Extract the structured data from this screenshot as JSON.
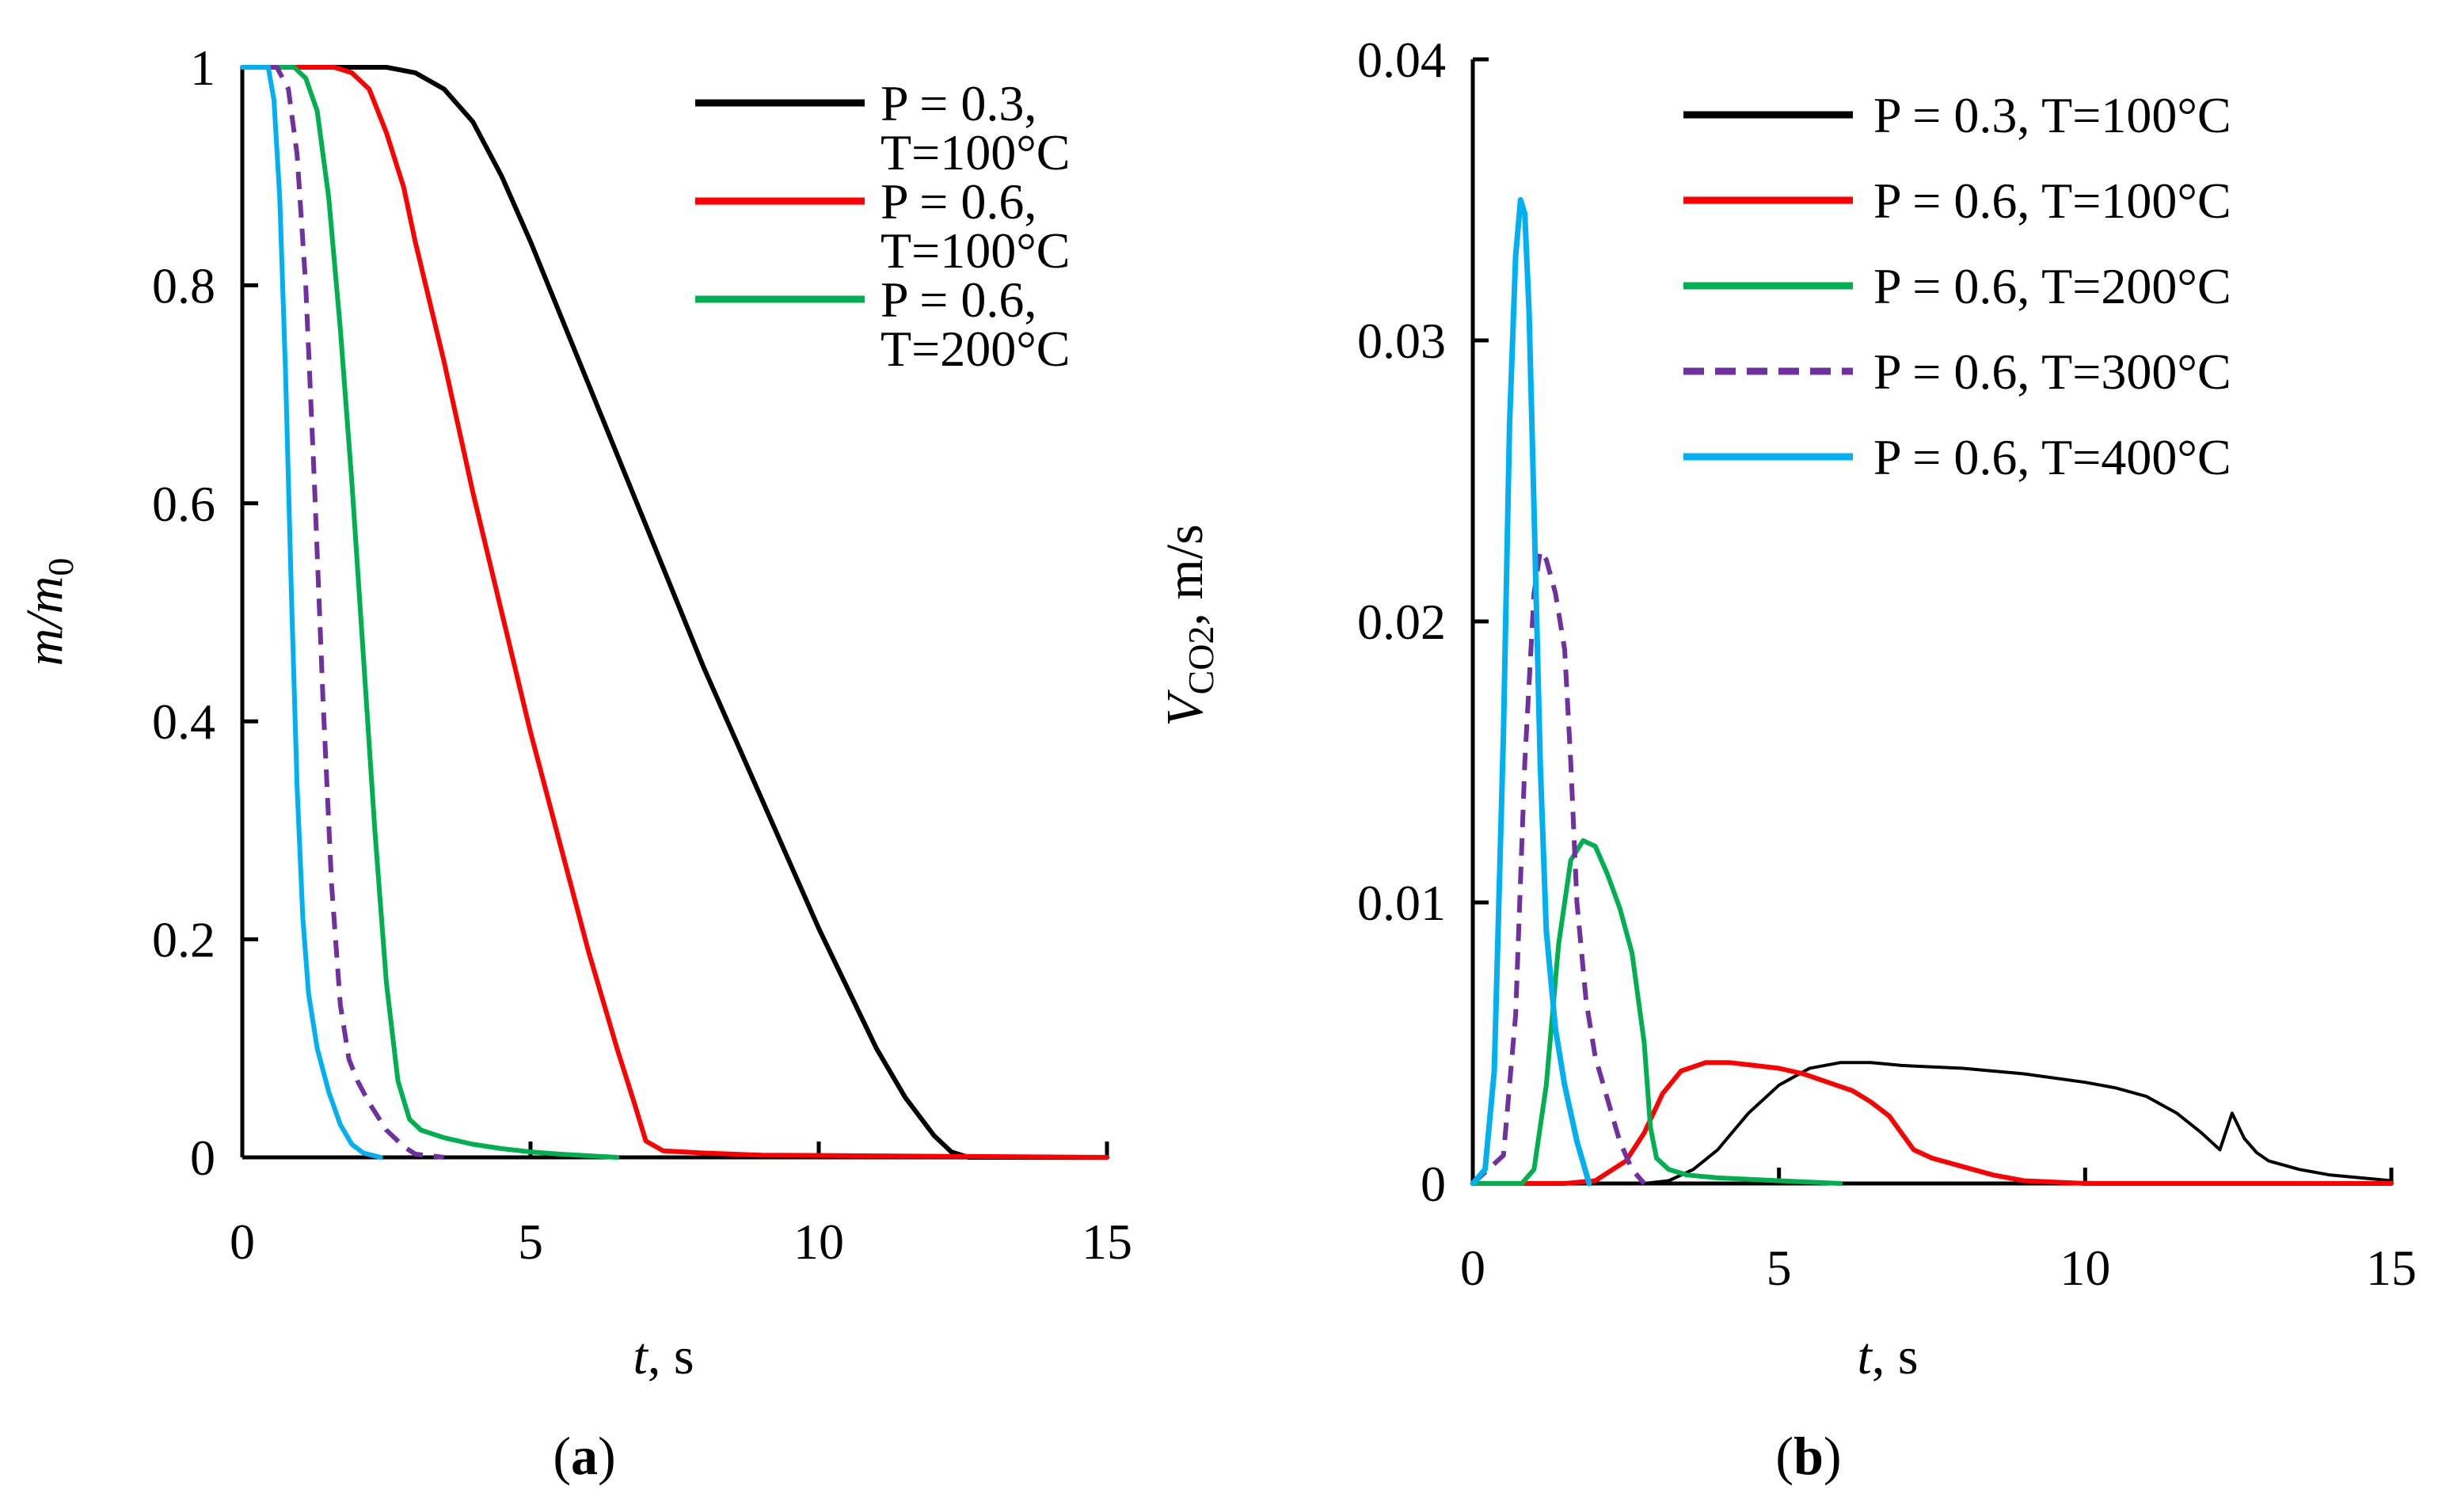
{
  "colors": {
    "black": "#000000",
    "red": "#ff0000",
    "green": "#00b050",
    "purple": "#7030a0",
    "cyan": "#00b0f0"
  },
  "chart_data": [
    {
      "panel_label": "(a)",
      "type": "line",
      "title": "",
      "xlabel_var": "t",
      "xlabel_unit": ", s",
      "ylabel_var": "m/m",
      "ylabel_sub": "0",
      "xlim": [
        0,
        15
      ],
      "ylim": [
        0,
        1
      ],
      "xticks": [
        0,
        5,
        10,
        15
      ],
      "xtick_labels": [
        "0",
        "5",
        "10",
        "15"
      ],
      "yticks": [
        0,
        0.2,
        0.4,
        0.6,
        0.8,
        1
      ],
      "ytick_labels": [
        "0",
        "0.2",
        "0.4",
        "0.6",
        "0.8",
        "1"
      ],
      "grid": false,
      "legend_position": "top-right",
      "series": [
        {
          "name_lines": [
            "P = 0.3,",
            "T=100°C"
          ],
          "color": "#000000",
          "dashed": false,
          "legend": true,
          "width": 6,
          "x": [
            0,
            2.5,
            3.0,
            3.5,
            4.0,
            4.5,
            5.0,
            6.0,
            7.0,
            8.0,
            9.0,
            10.0,
            11.0,
            11.5,
            12.0,
            12.3,
            12.6,
            15
          ],
          "y": [
            1,
            1,
            0.995,
            0.98,
            0.95,
            0.9,
            0.84,
            0.71,
            0.58,
            0.45,
            0.33,
            0.21,
            0.1,
            0.055,
            0.02,
            0.005,
            0,
            0
          ]
        },
        {
          "name_lines": [
            "P = 0.6,",
            "T=100°C"
          ],
          "color": "#ff0000",
          "dashed": false,
          "legend": true,
          "width": 6,
          "x": [
            0,
            1.6,
            1.9,
            2.2,
            2.5,
            2.8,
            3.0,
            3.5,
            4.0,
            4.5,
            5.0,
            5.5,
            6.0,
            6.5,
            6.8,
            7.0,
            7.3,
            8.0,
            9.0,
            15
          ],
          "y": [
            1,
            1,
            0.995,
            0.98,
            0.94,
            0.89,
            0.84,
            0.73,
            0.61,
            0.5,
            0.39,
            0.29,
            0.19,
            0.1,
            0.05,
            0.015,
            0.006,
            0.004,
            0.002,
            0
          ]
        },
        {
          "name_lines": [
            "P = 0.6,",
            "T=200°C"
          ],
          "color": "#00b050",
          "dashed": false,
          "legend": true,
          "width": 6,
          "x": [
            0,
            0.9,
            1.1,
            1.3,
            1.5,
            1.7,
            1.9,
            2.1,
            2.3,
            2.5,
            2.7,
            2.9,
            3.1,
            3.5,
            4.0,
            4.5,
            5.0,
            5.5,
            6.5
          ],
          "y": [
            1,
            1,
            0.99,
            0.96,
            0.88,
            0.76,
            0.62,
            0.46,
            0.3,
            0.16,
            0.07,
            0.035,
            0.025,
            0.018,
            0.012,
            0.008,
            0.005,
            0.003,
            0
          ]
        },
        {
          "name_lines": [
            "P = 0.6, T=300°C"
          ],
          "color": "#7030a0",
          "dashed": true,
          "legend": false,
          "width": 6,
          "x": [
            0,
            0.6,
            0.8,
            0.95,
            1.1,
            1.25,
            1.4,
            1.55,
            1.7,
            1.85,
            2.0,
            2.2,
            2.5,
            2.8,
            3.0,
            3.5
          ],
          "y": [
            1,
            1,
            0.98,
            0.92,
            0.8,
            0.62,
            0.42,
            0.25,
            0.14,
            0.09,
            0.07,
            0.05,
            0.025,
            0.01,
            0.003,
            0
          ]
        },
        {
          "name_lines": [
            "P = 0.6, T=400°C"
          ],
          "color": "#00b0f0",
          "dashed": false,
          "legend": false,
          "width": 6,
          "x": [
            0,
            0.45,
            0.55,
            0.65,
            0.75,
            0.85,
            0.95,
            1.05,
            1.15,
            1.3,
            1.5,
            1.7,
            1.9,
            2.1,
            2.4
          ],
          "y": [
            1,
            1,
            0.97,
            0.88,
            0.72,
            0.52,
            0.34,
            0.22,
            0.15,
            0.1,
            0.06,
            0.03,
            0.012,
            0.004,
            0
          ]
        }
      ]
    },
    {
      "panel_label": "(b)",
      "type": "line",
      "title": "",
      "xlabel_var": "t",
      "xlabel_unit": ", s",
      "ylabel_var": "V",
      "ylabel_sub": "CO2",
      "ylabel_unit": ", m/s",
      "xlim": [
        0,
        15
      ],
      "ylim": [
        0,
        0.04
      ],
      "xticks": [
        0,
        5,
        10,
        15
      ],
      "xtick_labels": [
        "0",
        "5",
        "10",
        "15"
      ],
      "yticks": [
        0,
        0.01,
        0.02,
        0.03,
        0.04
      ],
      "ytick_labels": [
        "0",
        "0.01",
        "0.02",
        "0.03",
        "0.04"
      ],
      "grid": false,
      "legend_position": "top-right",
      "series": [
        {
          "name_lines": [
            "P = 0.3, T=100°C"
          ],
          "color": "#000000",
          "dashed": false,
          "legend": true,
          "width": 4,
          "x": [
            0,
            2.8,
            3.2,
            3.6,
            4.0,
            4.5,
            5.0,
            5.5,
            6.0,
            6.5,
            7.0,
            8.0,
            9.0,
            10.0,
            10.5,
            11.0,
            11.5,
            11.9,
            12.2,
            12.4,
            12.6,
            12.8,
            13.0,
            13.5,
            14.0,
            14.5,
            15.0
          ],
          "y": [
            0,
            0,
            0.0001,
            0.0005,
            0.0012,
            0.0025,
            0.0035,
            0.0041,
            0.0043,
            0.0043,
            0.0042,
            0.0041,
            0.0039,
            0.0036,
            0.0034,
            0.0031,
            0.0025,
            0.0018,
            0.0012,
            0.0025,
            0.0016,
            0.0011,
            0.0008,
            0.0005,
            0.0003,
            0.0002,
            0.0001
          ]
        },
        {
          "name_lines": [
            "P = 0.6, T=100°C"
          ],
          "color": "#ff0000",
          "dashed": false,
          "legend": true,
          "width": 6,
          "x": [
            0,
            1.5,
            2.0,
            2.5,
            2.8,
            3.1,
            3.4,
            3.8,
            4.2,
            4.6,
            5.0,
            5.4,
            5.8,
            6.2,
            6.5,
            6.8,
            7.0,
            7.2,
            7.5,
            8.0,
            8.5,
            9.0,
            10.0,
            15.0
          ],
          "y": [
            0,
            0,
            0.0001,
            0.0008,
            0.0018,
            0.0032,
            0.004,
            0.0043,
            0.0043,
            0.0042,
            0.0041,
            0.0039,
            0.0036,
            0.0033,
            0.0029,
            0.0024,
            0.0018,
            0.0012,
            0.0009,
            0.0006,
            0.0003,
            0.0001,
            0,
            0
          ]
        },
        {
          "name_lines": [
            "P = 0.6, T=200°C"
          ],
          "color": "#00b050",
          "dashed": false,
          "legend": true,
          "width": 6,
          "x": [
            0,
            0.8,
            1.0,
            1.2,
            1.4,
            1.6,
            1.8,
            2.0,
            2.2,
            2.4,
            2.6,
            2.8,
            2.9,
            3.0,
            3.2,
            3.5,
            4.0,
            5.0,
            6.0
          ],
          "y": [
            0,
            0,
            0.0005,
            0.0035,
            0.0085,
            0.0115,
            0.0122,
            0.012,
            0.011,
            0.0098,
            0.0082,
            0.005,
            0.002,
            0.0009,
            0.0005,
            0.0003,
            0.0002,
            0.0001,
            0
          ]
        },
        {
          "name_lines": [
            "P = 0.6, T=300°C"
          ],
          "color": "#7030a0",
          "dashed": true,
          "legend": true,
          "width": 6,
          "x": [
            0,
            0.5,
            0.7,
            0.85,
            1.0,
            1.1,
            1.2,
            1.35,
            1.5,
            1.6,
            1.7,
            1.85,
            2.0,
            2.2,
            2.4,
            2.6,
            2.8
          ],
          "y": [
            0,
            0.001,
            0.006,
            0.015,
            0.021,
            0.0225,
            0.0222,
            0.021,
            0.019,
            0.015,
            0.01,
            0.0065,
            0.0045,
            0.003,
            0.0015,
            0.0005,
            0
          ]
        },
        {
          "name_lines": [
            "P = 0.6, T=400°C"
          ],
          "color": "#00b0f0",
          "dashed": false,
          "legend": true,
          "width": 7,
          "x": [
            0,
            0.2,
            0.35,
            0.5,
            0.6,
            0.7,
            0.78,
            0.85,
            0.92,
            1.0,
            1.1,
            1.2,
            1.35,
            1.5,
            1.7,
            1.9
          ],
          "y": [
            0,
            0.0005,
            0.004,
            0.016,
            0.027,
            0.033,
            0.035,
            0.0345,
            0.031,
            0.024,
            0.015,
            0.009,
            0.0055,
            0.0035,
            0.0015,
            0
          ]
        }
      ]
    }
  ]
}
